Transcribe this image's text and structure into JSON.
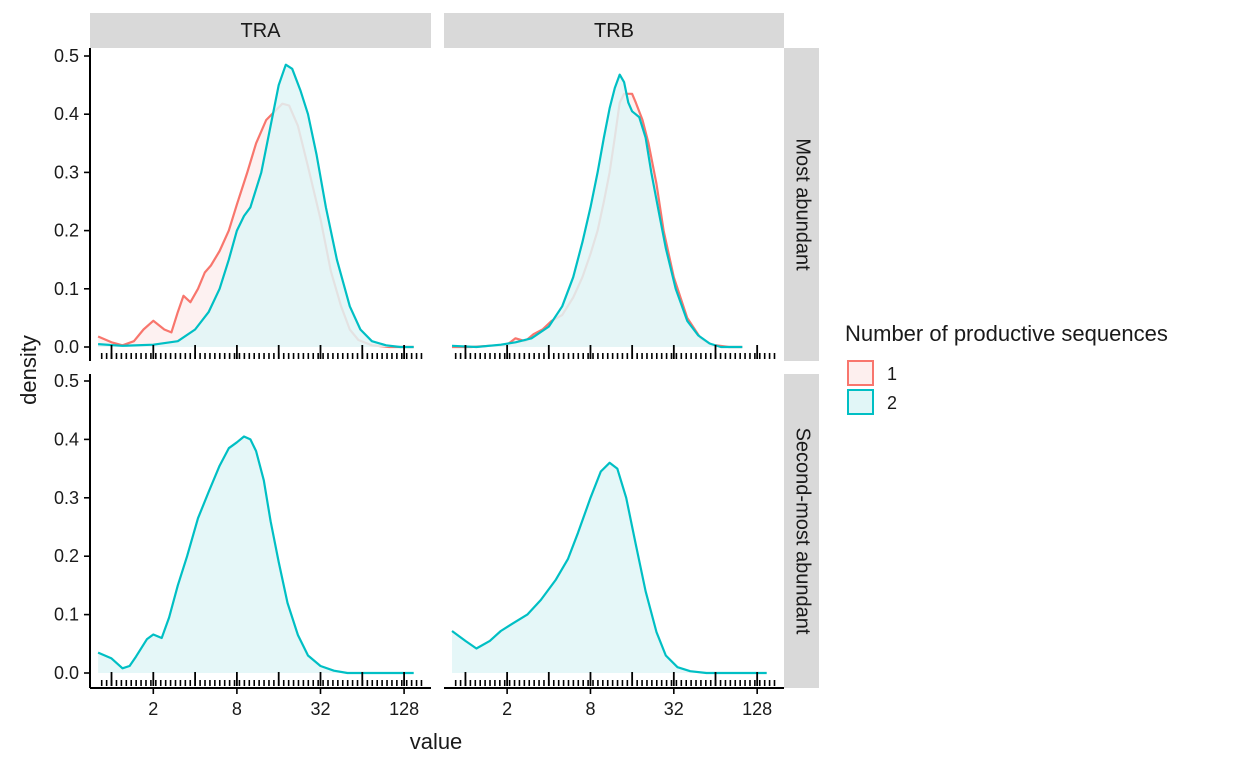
{
  "chart_data": {
    "type": "area",
    "subtype": "density-facet-grid",
    "xlabel": "value",
    "ylabel": "density",
    "x_scale": "log2",
    "xlim": [
      0.7,
      200
    ],
    "x_ticks": [
      2,
      8,
      32,
      128
    ],
    "x_tick_labels": [
      "2",
      "8",
      "32",
      "128"
    ],
    "ylim": [
      0,
      0.5
    ],
    "y_ticks": [
      0.0,
      0.1,
      0.2,
      0.3,
      0.4,
      0.5
    ],
    "y_tick_labels": [
      "0.0",
      "0.1",
      "0.2",
      "0.3",
      "0.4",
      "0.5"
    ],
    "grid": false,
    "rug": true,
    "facet_columns": [
      "TRA",
      "TRB"
    ],
    "facet_rows": [
      "Most abundant",
      "Second-most abundant"
    ],
    "legend": {
      "title": "Number of productive sequences",
      "position": "right",
      "entries": [
        {
          "label": "1",
          "color": "#F8766D",
          "fill": "#FDEFEE"
        },
        {
          "label": "2",
          "color": "#00BFC4",
          "fill": "#E1F6F7"
        }
      ]
    },
    "panels": [
      {
        "col": "TRA",
        "row": "Most abundant",
        "series": [
          {
            "name": "1",
            "points": [
              [
                0.8,
                0.018
              ],
              [
                1.0,
                0.008
              ],
              [
                1.2,
                0.003
              ],
              [
                1.45,
                0.01
              ],
              [
                1.7,
                0.03
              ],
              [
                2.0,
                0.045
              ],
              [
                2.4,
                0.03
              ],
              [
                2.7,
                0.025
              ],
              [
                3.0,
                0.06
              ],
              [
                3.3,
                0.088
              ],
              [
                3.7,
                0.077
              ],
              [
                4.2,
                0.1
              ],
              [
                4.7,
                0.128
              ],
              [
                5.2,
                0.14
              ],
              [
                6.0,
                0.165
              ],
              [
                7.0,
                0.2
              ],
              [
                8.0,
                0.245
              ],
              [
                9.5,
                0.3
              ],
              [
                11,
                0.35
              ],
              [
                13,
                0.39
              ],
              [
                15,
                0.405
              ],
              [
                17,
                0.418
              ],
              [
                19,
                0.415
              ],
              [
                22,
                0.38
              ],
              [
                26,
                0.31
              ],
              [
                32,
                0.22
              ],
              [
                38,
                0.13
              ],
              [
                45,
                0.07
              ],
              [
                52,
                0.03
              ],
              [
                60,
                0.012
              ],
              [
                75,
                0.003
              ],
              [
                100,
                0.0
              ],
              [
                150,
                0.0
              ]
            ]
          },
          {
            "name": "2",
            "points": [
              [
                0.8,
                0.005
              ],
              [
                1.2,
                0.002
              ],
              [
                2.0,
                0.004
              ],
              [
                3.0,
                0.01
              ],
              [
                4.0,
                0.03
              ],
              [
                5.0,
                0.06
              ],
              [
                6.0,
                0.1
              ],
              [
                7.0,
                0.15
              ],
              [
                8.0,
                0.2
              ],
              [
                9.0,
                0.225
              ],
              [
                10,
                0.24
              ],
              [
                12,
                0.3
              ],
              [
                14,
                0.38
              ],
              [
                16,
                0.45
              ],
              [
                18,
                0.485
              ],
              [
                20,
                0.478
              ],
              [
                23,
                0.44
              ],
              [
                26,
                0.4
              ],
              [
                30,
                0.33
              ],
              [
                35,
                0.24
              ],
              [
                42,
                0.15
              ],
              [
                52,
                0.07
              ],
              [
                62,
                0.03
              ],
              [
                75,
                0.01
              ],
              [
                95,
                0.003
              ],
              [
                120,
                0.0
              ],
              [
                150,
                0.0
              ]
            ]
          }
        ]
      },
      {
        "col": "TRB",
        "row": "Most abundant",
        "series": [
          {
            "name": "1",
            "points": [
              [
                0.8,
                0.0
              ],
              [
                1.1,
                0.0
              ],
              [
                1.5,
                0.002
              ],
              [
                2.0,
                0.004
              ],
              [
                2.3,
                0.015
              ],
              [
                2.7,
                0.01
              ],
              [
                3.1,
                0.022
              ],
              [
                3.6,
                0.03
              ],
              [
                4.2,
                0.045
              ],
              [
                5.0,
                0.055
              ],
              [
                6.0,
                0.085
              ],
              [
                7.0,
                0.12
              ],
              [
                8.0,
                0.16
              ],
              [
                9.0,
                0.2
              ],
              [
                10,
                0.25
              ],
              [
                11,
                0.3
              ],
              [
                12,
                0.36
              ],
              [
                13,
                0.42
              ],
              [
                14,
                0.435
              ],
              [
                16,
                0.435
              ],
              [
                17,
                0.42
              ],
              [
                19,
                0.39
              ],
              [
                21,
                0.35
              ],
              [
                24,
                0.28
              ],
              [
                27,
                0.2
              ],
              [
                32,
                0.12
              ],
              [
                40,
                0.05
              ],
              [
                50,
                0.015
              ],
              [
                60,
                0.004
              ],
              [
                80,
                0.0
              ],
              [
                100,
                0.0
              ]
            ]
          },
          {
            "name": "2",
            "points": [
              [
                0.8,
                0.002
              ],
              [
                1.2,
                0.0
              ],
              [
                1.8,
                0.004
              ],
              [
                2.3,
                0.008
              ],
              [
                3.0,
                0.015
              ],
              [
                4.0,
                0.035
              ],
              [
                5.0,
                0.07
              ],
              [
                6.0,
                0.12
              ],
              [
                7.0,
                0.18
              ],
              [
                8.0,
                0.24
              ],
              [
                9.0,
                0.3
              ],
              [
                10,
                0.36
              ],
              [
                11,
                0.41
              ],
              [
                12,
                0.445
              ],
              [
                13,
                0.468
              ],
              [
                14,
                0.455
              ],
              [
                15,
                0.42
              ],
              [
                16,
                0.405
              ],
              [
                18,
                0.395
              ],
              [
                20,
                0.36
              ],
              [
                22,
                0.3
              ],
              [
                25,
                0.23
              ],
              [
                28,
                0.17
              ],
              [
                33,
                0.1
              ],
              [
                40,
                0.045
              ],
              [
                48,
                0.02
              ],
              [
                58,
                0.006
              ],
              [
                70,
                0.0
              ],
              [
                100,
                0.0
              ]
            ]
          }
        ]
      },
      {
        "col": "TRA",
        "row": "Second-most abundant",
        "series": [
          {
            "name": "2",
            "points": [
              [
                0.8,
                0.035
              ],
              [
                1.0,
                0.025
              ],
              [
                1.2,
                0.008
              ],
              [
                1.35,
                0.012
              ],
              [
                1.5,
                0.028
              ],
              [
                1.8,
                0.058
              ],
              [
                2.0,
                0.066
              ],
              [
                2.3,
                0.06
              ],
              [
                2.6,
                0.095
              ],
              [
                3.0,
                0.15
              ],
              [
                3.5,
                0.2
              ],
              [
                4.2,
                0.265
              ],
              [
                5.0,
                0.31
              ],
              [
                6.0,
                0.355
              ],
              [
                7.0,
                0.385
              ],
              [
                8.0,
                0.395
              ],
              [
                9.0,
                0.405
              ],
              [
                10,
                0.4
              ],
              [
                11,
                0.38
              ],
              [
                12.5,
                0.33
              ],
              [
                14,
                0.26
              ],
              [
                16,
                0.19
              ],
              [
                18.5,
                0.12
              ],
              [
                22,
                0.065
              ],
              [
                26,
                0.03
              ],
              [
                32,
                0.012
              ],
              [
                40,
                0.004
              ],
              [
                50,
                0.0
              ],
              [
                100,
                0.0
              ],
              [
                150,
                0.0
              ]
            ]
          }
        ]
      },
      {
        "col": "TRB",
        "row": "Second-most abundant",
        "series": [
          {
            "name": "2",
            "points": [
              [
                0.8,
                0.072
              ],
              [
                1.0,
                0.055
              ],
              [
                1.2,
                0.042
              ],
              [
                1.5,
                0.055
              ],
              [
                1.8,
                0.072
              ],
              [
                2.2,
                0.085
              ],
              [
                2.8,
                0.1
              ],
              [
                3.5,
                0.125
              ],
              [
                4.5,
                0.16
              ],
              [
                5.5,
                0.195
              ],
              [
                6.5,
                0.24
              ],
              [
                8.0,
                0.3
              ],
              [
                9.5,
                0.345
              ],
              [
                11,
                0.36
              ],
              [
                12.5,
                0.35
              ],
              [
                14.5,
                0.3
              ],
              [
                17,
                0.22
              ],
              [
                20,
                0.14
              ],
              [
                24,
                0.07
              ],
              [
                28,
                0.03
              ],
              [
                34,
                0.01
              ],
              [
                42,
                0.003
              ],
              [
                55,
                0.0
              ],
              [
                100,
                0.0
              ],
              [
                150,
                0.0
              ]
            ]
          }
        ]
      }
    ]
  }
}
